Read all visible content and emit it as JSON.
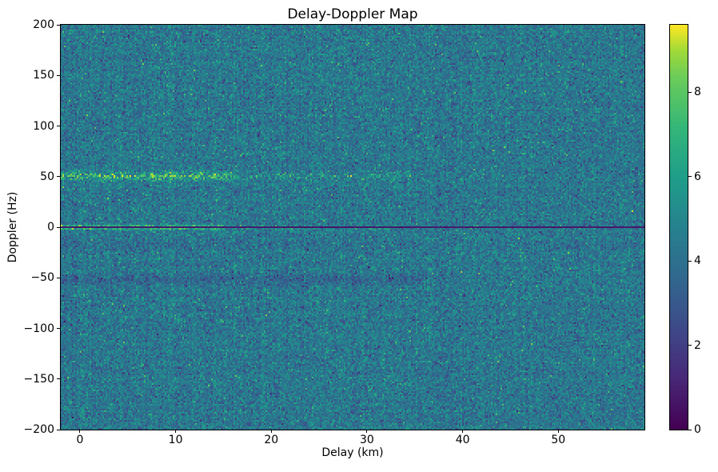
{
  "chart_data": {
    "type": "heatmap",
    "title": "Delay-Doppler Map",
    "xlabel": "Delay (km)",
    "ylabel": "Doppler (Hz)",
    "xlim": [
      -2,
      59
    ],
    "ylim": [
      -200,
      200
    ],
    "x_ticks": [
      0,
      10,
      20,
      30,
      40,
      50
    ],
    "y_ticks": [
      200,
      150,
      100,
      50,
      0,
      -50,
      -100,
      -150,
      -200
    ],
    "grid": false,
    "legend": "none",
    "colormap": "viridis",
    "colorbar": {
      "vmin": 0,
      "vmax": 9.6,
      "ticks": [
        0,
        2,
        4,
        6,
        8
      ],
      "position": "right"
    },
    "background_noise": {
      "mean": 4.3,
      "std": 0.85,
      "description": "speckled sea-clutter noise filling the whole map, mostly values 3-5 (teal/green)"
    },
    "features": [
      {
        "name": "zero-doppler-specular-line",
        "doppler_hz": 0,
        "delay_range_km": [
          -2,
          59
        ],
        "peak_value": 9.6,
        "bright_until_delay_km": 15,
        "secondary_bright_spot_delay_km": 31,
        "description": "very bright narrow horizontal return at 0 Hz, strongest for delay < 15 km, with a thin dark line exactly at 0 Hz spanning the full width"
      },
      {
        "name": "target-band-plus-50hz",
        "doppler_range_hz": [
          44,
          57
        ],
        "delay_range_km": [
          -2,
          16
        ],
        "fades_until_delay_km": 35,
        "peak_value": 9.4,
        "description": "speckled bright yellow-green band near +50 Hz, dense for delay < 16 km then fading patches out to ~35 km"
      },
      {
        "name": "faint-dark-band-minus-52hz",
        "doppler_range_hz": [
          -60,
          -44
        ],
        "delay_range_km": [
          -2,
          36
        ],
        "value_offset": -0.8,
        "description": "subtle darker blue band near -52 Hz on the left half"
      }
    ],
    "seed": 42
  },
  "icons": {},
  "colors": {
    "figure_background": "#ffffff",
    "axis": "#000000",
    "colormap_low": "#440154",
    "colormap_mid": "#1f9e89",
    "colormap_high": "#fde725"
  }
}
